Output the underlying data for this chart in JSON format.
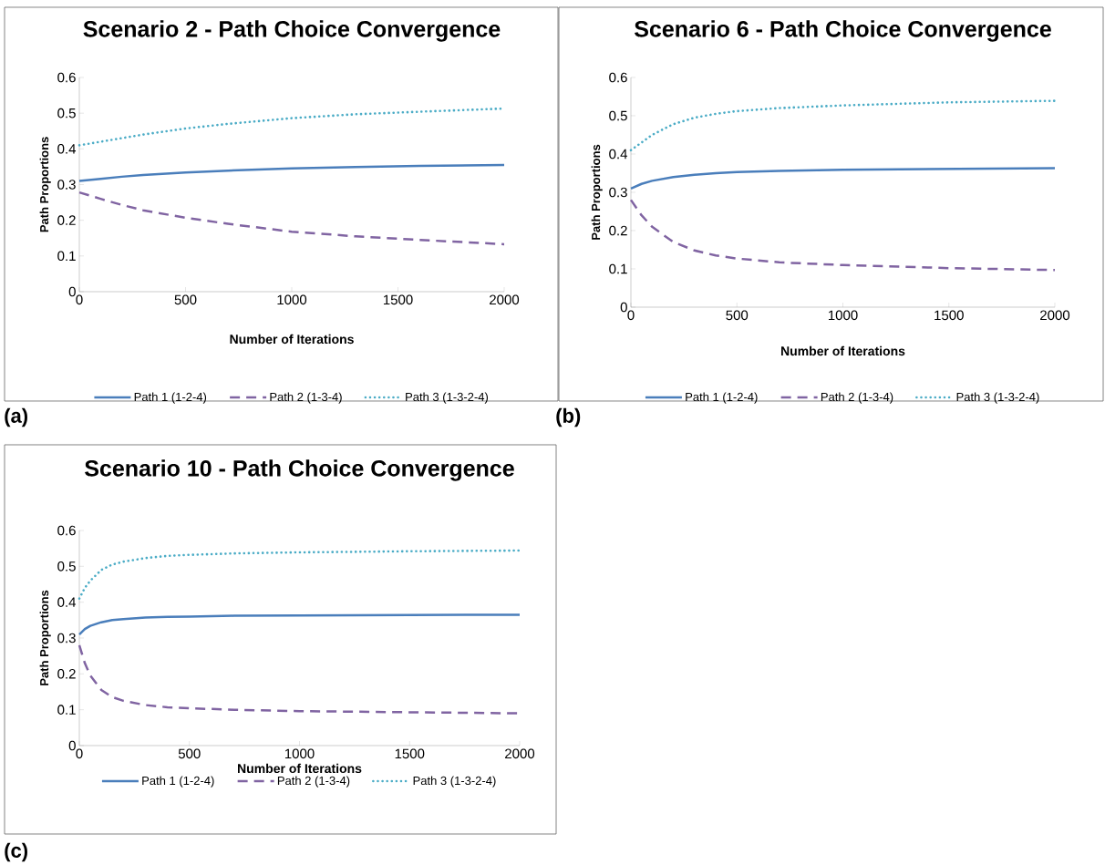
{
  "chart_data": [
    {
      "type": "line",
      "title": "Scenario 2 - Path Choice Convergence",
      "xlabel": "Number of Iterations",
      "ylabel": "Path Proportions",
      "annotations": [
        "(a)"
      ],
      "legend": "bottom",
      "xlim": [
        0,
        2000
      ],
      "xticks": [
        0,
        500,
        1000,
        1500,
        2000
      ],
      "ylim": [
        0,
        0.6
      ],
      "yticks": [
        0,
        0.1,
        0.2,
        0.3,
        0.4,
        0.5,
        0.6
      ],
      "series": [
        {
          "name": "Path 1 (1-2-4)",
          "color": "#4a7ebb",
          "line_style": "solid",
          "x": [
            0,
            100,
            200,
            300,
            500,
            700,
            1000,
            1300,
            1600,
            2000
          ],
          "values": [
            0.31,
            0.316,
            0.322,
            0.327,
            0.334,
            0.339,
            0.345,
            0.349,
            0.352,
            0.355
          ]
        },
        {
          "name": "Path 2 (1-3-4)",
          "color": "#8064a2",
          "line_style": "dashed",
          "x": [
            0,
            100,
            200,
            300,
            500,
            700,
            1000,
            1300,
            1600,
            2000
          ],
          "values": [
            0.278,
            0.26,
            0.243,
            0.228,
            0.207,
            0.19,
            0.168,
            0.155,
            0.145,
            0.133
          ]
        },
        {
          "name": "Path 3 (1-3-2-4)",
          "color": "#4bacc6",
          "line_style": "dotted",
          "x": [
            0,
            100,
            200,
            300,
            500,
            700,
            1000,
            1300,
            1600,
            2000
          ],
          "values": [
            0.41,
            0.42,
            0.43,
            0.44,
            0.457,
            0.47,
            0.486,
            0.497,
            0.504,
            0.513
          ]
        }
      ]
    },
    {
      "type": "line",
      "title": "Scenario 6 - Path Choice Convergence",
      "xlabel": "Number of Iterations",
      "ylabel": "Path Proportions",
      "annotations": [
        "(b)"
      ],
      "legend": "bottom",
      "xlim": [
        0,
        2000
      ],
      "xticks": [
        0,
        500,
        1000,
        1500,
        2000
      ],
      "ylim": [
        0,
        0.6
      ],
      "yticks": [
        0,
        0.1,
        0.2,
        0.3,
        0.4,
        0.5,
        0.6
      ],
      "series": [
        {
          "name": "Path 1 (1-2-4)",
          "color": "#4a7ebb",
          "line_style": "solid",
          "x": [
            0,
            50,
            100,
            200,
            300,
            400,
            500,
            700,
            1000,
            1500,
            2000
          ],
          "values": [
            0.31,
            0.322,
            0.33,
            0.34,
            0.346,
            0.35,
            0.353,
            0.356,
            0.359,
            0.361,
            0.363
          ]
        },
        {
          "name": "Path 2 (1-3-4)",
          "color": "#8064a2",
          "line_style": "dashed",
          "x": [
            0,
            50,
            100,
            200,
            300,
            400,
            500,
            700,
            1000,
            1500,
            2000
          ],
          "values": [
            0.28,
            0.24,
            0.21,
            0.17,
            0.148,
            0.135,
            0.127,
            0.117,
            0.11,
            0.102,
            0.097
          ]
        },
        {
          "name": "Path 3 (1-3-2-4)",
          "color": "#4bacc6",
          "line_style": "dotted",
          "x": [
            0,
            50,
            100,
            200,
            300,
            400,
            500,
            700,
            1000,
            1500,
            2000
          ],
          "values": [
            0.41,
            0.43,
            0.45,
            0.478,
            0.495,
            0.505,
            0.512,
            0.52,
            0.527,
            0.535,
            0.539
          ]
        }
      ]
    },
    {
      "type": "line",
      "title": "Scenario 10 - Path Choice Convergence",
      "xlabel": "Number of Iterations",
      "ylabel": "Path Proportions",
      "annotations": [
        "(c)"
      ],
      "legend": "bottom",
      "xlim": [
        0,
        2000
      ],
      "xticks": [
        0,
        500,
        1000,
        1500,
        2000
      ],
      "ylim": [
        0,
        0.6
      ],
      "yticks": [
        0,
        0.1,
        0.2,
        0.3,
        0.4,
        0.5,
        0.6
      ],
      "series": [
        {
          "name": "Path 1 (1-2-4)",
          "color": "#4a7ebb",
          "line_style": "solid",
          "x": [
            0,
            25,
            50,
            100,
            150,
            200,
            300,
            400,
            500,
            700,
            1000,
            1500,
            2000
          ],
          "values": [
            0.31,
            0.325,
            0.334,
            0.344,
            0.35,
            0.353,
            0.357,
            0.359,
            0.36,
            0.362,
            0.363,
            0.364,
            0.365
          ]
        },
        {
          "name": "Path 2 (1-3-4)",
          "color": "#8064a2",
          "line_style": "dashed",
          "x": [
            0,
            25,
            50,
            100,
            150,
            200,
            300,
            400,
            500,
            700,
            1000,
            1500,
            2000
          ],
          "values": [
            0.28,
            0.23,
            0.195,
            0.155,
            0.135,
            0.125,
            0.113,
            0.107,
            0.104,
            0.1,
            0.096,
            0.093,
            0.09
          ]
        },
        {
          "name": "Path 3 (1-3-2-4)",
          "color": "#4bacc6",
          "line_style": "dotted",
          "x": [
            0,
            25,
            50,
            100,
            150,
            200,
            300,
            400,
            500,
            700,
            1000,
            1500,
            2000
          ],
          "values": [
            0.41,
            0.44,
            0.46,
            0.49,
            0.505,
            0.513,
            0.523,
            0.529,
            0.532,
            0.536,
            0.539,
            0.542,
            0.544
          ]
        }
      ]
    }
  ]
}
